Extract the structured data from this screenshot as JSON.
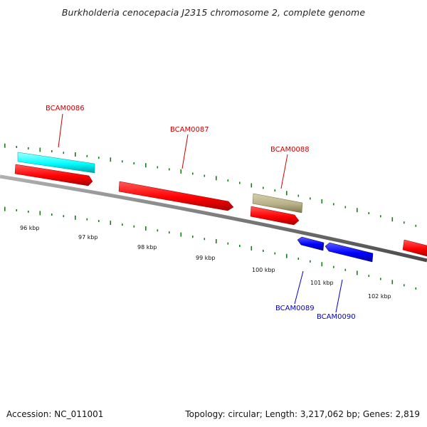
{
  "title": "Burkholderia cenocepacia J2315 chromosome 2, complete genome",
  "footer": {
    "accession": "Accession: NC_011001",
    "summary": "Topology: circular; Length: 3,217,062 bp; Genes: 2,819"
  },
  "colors": {
    "forward_gene": "#ff0000",
    "reverse_gene": "#0000ff",
    "forward_label": "#cc0000",
    "reverse_label": "#0000cc",
    "rrna_or_cds_alt": "#00ffff",
    "other_feature": "#b8b088",
    "gc_ticks": "#1a7a1a",
    "backbone": "#7a7a7a"
  },
  "scale_labels": [
    "96 kbp",
    "97 kbp",
    "98 kbp",
    "99 kbp",
    "100 kbp",
    "101 kbp",
    "102 kbp"
  ],
  "gene_labels": {
    "forward": [
      "BCAM0086",
      "BCAM0087",
      "BCAM0088"
    ],
    "reverse": [
      "BCAM0089",
      "BCAM0090"
    ]
  }
}
